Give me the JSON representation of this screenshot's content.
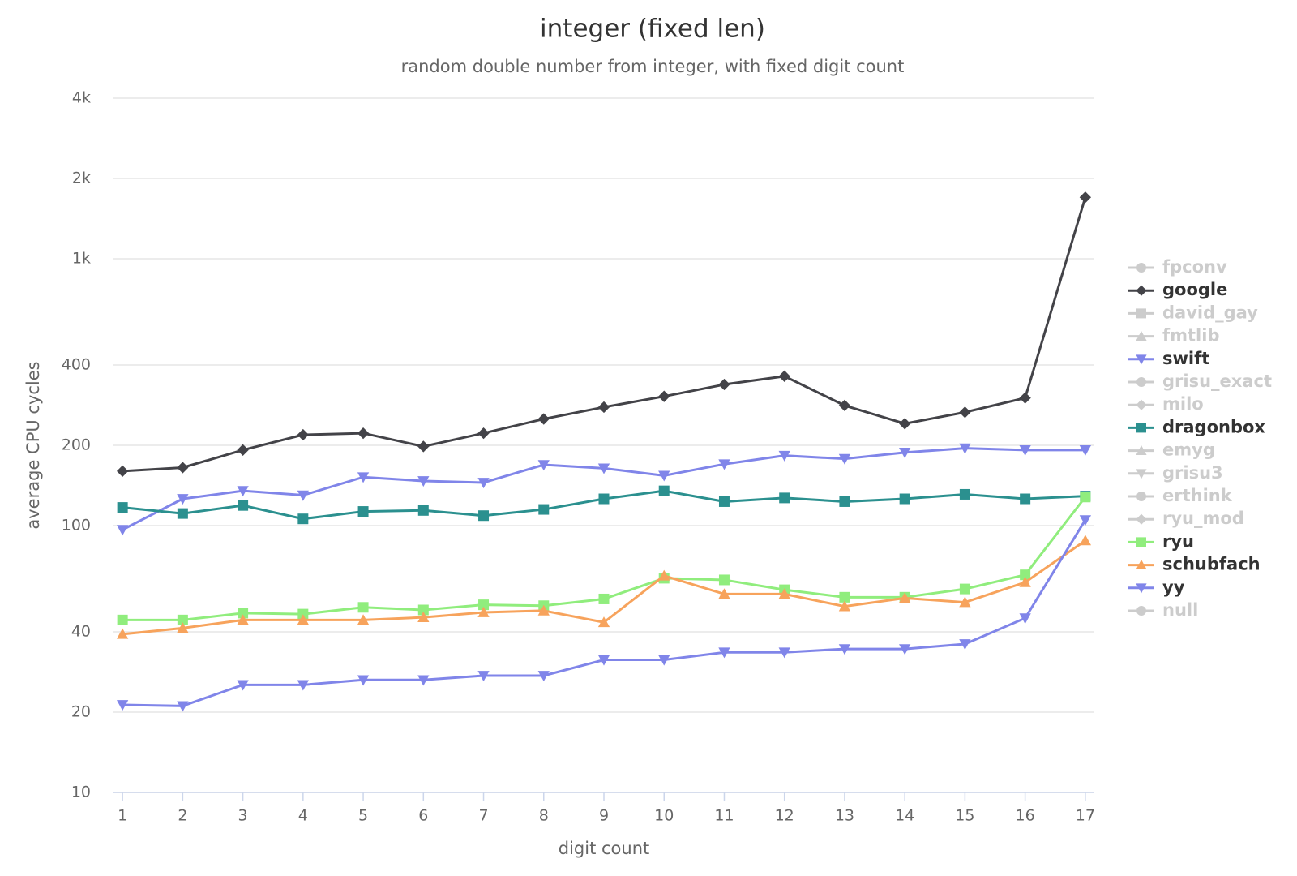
{
  "chart_data": {
    "type": "line",
    "title": "integer (fixed len)",
    "subtitle": "random double number from integer, with fixed digit count",
    "x_label": "digit count",
    "y_label": "average CPU cycles",
    "x": [
      1,
      2,
      3,
      4,
      5,
      6,
      7,
      8,
      9,
      10,
      11,
      12,
      13,
      14,
      15,
      16,
      17
    ],
    "xlim": [
      0.85,
      17.15
    ],
    "xticks": [
      1,
      2,
      3,
      4,
      5,
      6,
      7,
      8,
      9,
      10,
      11,
      12,
      13,
      14,
      15,
      16,
      17
    ],
    "y_log": true,
    "ylim": [
      10,
      4000
    ],
    "yticks": [
      10,
      20,
      40,
      100,
      200,
      400,
      {
        "value": 1000,
        "label": "1k"
      },
      {
        "value": 2000,
        "label": "2k"
      },
      {
        "value": 4000,
        "label": "4k"
      }
    ],
    "grid": true,
    "legend": "right",
    "hidden_color": "#cccccc",
    "series": [
      {
        "name": "fpconv",
        "visible": false,
        "marker": "circle"
      },
      {
        "name": "google",
        "visible": true,
        "marker": "diamond",
        "color": "#434348",
        "values": [
          160,
          165,
          192,
          219,
          222,
          198,
          222,
          251,
          278,
          305,
          338,
          363,
          282,
          241,
          266,
          301,
          1700
        ]
      },
      {
        "name": "david_gay",
        "visible": false,
        "marker": "square"
      },
      {
        "name": "fmtlib",
        "visible": false,
        "marker": "triangle"
      },
      {
        "name": "swift",
        "visible": true,
        "marker": "triangle-down",
        "color": "#8085e9",
        "values": [
          96.5,
          126,
          135,
          130,
          152,
          147,
          145,
          169,
          164,
          154,
          170,
          183,
          178,
          188,
          195,
          192,
          192
        ]
      },
      {
        "name": "grisu_exact",
        "visible": false,
        "marker": "circle"
      },
      {
        "name": "milo",
        "visible": false,
        "marker": "diamond"
      },
      {
        "name": "dragonbox",
        "visible": true,
        "marker": "square",
        "color": "#2b908f",
        "values": [
          117,
          111,
          119,
          106,
          113,
          114,
          109,
          115,
          126,
          135,
          123,
          127,
          123,
          126,
          131,
          126,
          129
        ]
      },
      {
        "name": "emyg",
        "visible": false,
        "marker": "triangle"
      },
      {
        "name": "grisu3",
        "visible": false,
        "marker": "triangle-down"
      },
      {
        "name": "erthink",
        "visible": false,
        "marker": "circle"
      },
      {
        "name": "ryu_mod",
        "visible": false,
        "marker": "diamond"
      },
      {
        "name": "ryu",
        "visible": true,
        "marker": "square",
        "color": "#90ed7d",
        "values": [
          44.3,
          44.3,
          47,
          46.6,
          49.4,
          48.3,
          50.5,
          50.1,
          53.1,
          63.5,
          62.6,
          57.5,
          53.9,
          53.9,
          57.9,
          65.4,
          128
        ]
      },
      {
        "name": "schubfach",
        "visible": true,
        "marker": "triangle",
        "color": "#f7a35c",
        "values": [
          39.2,
          41.3,
          44.3,
          44.3,
          44.3,
          45.3,
          47.3,
          48,
          43.4,
          64.9,
          55.4,
          55.4,
          49.8,
          53.5,
          51.6,
          61.3,
          87.9
        ]
      },
      {
        "name": "yy",
        "visible": true,
        "marker": "triangle-down",
        "color": "#8085e9",
        "values": [
          21.3,
          21.1,
          25.3,
          25.3,
          26.4,
          26.4,
          27.4,
          27.4,
          31.4,
          31.4,
          33.5,
          33.5,
          34.5,
          34.5,
          36,
          45,
          105
        ]
      },
      {
        "name": "null",
        "visible": false,
        "marker": "circle"
      }
    ]
  }
}
